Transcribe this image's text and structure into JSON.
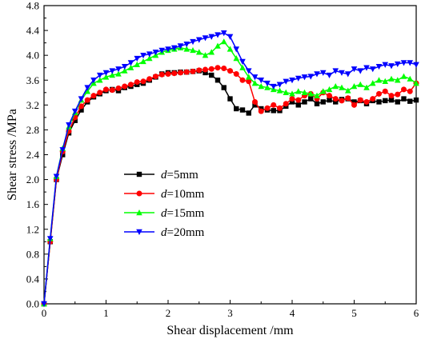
{
  "chart_data": {
    "type": "line",
    "xlabel": "Shear displacement /mm",
    "ylabel": "Shear stress /MPa",
    "xlim": [
      0,
      6
    ],
    "ylim": [
      0,
      4.8
    ],
    "xticks": [
      "0",
      "1",
      "2",
      "3",
      "4",
      "5",
      "6"
    ],
    "yticks": [
      "0.0",
      "0.4",
      "0.8",
      "1.2",
      "1.6",
      "2.0",
      "2.4",
      "2.8",
      "3.2",
      "3.6",
      "4.0",
      "4.4",
      "4.8"
    ],
    "grid": false,
    "legend_position": "center-left",
    "series": [
      {
        "name_prefix": "d",
        "name_suffix": "=5mm",
        "color": "#000000",
        "marker": "square",
        "x": [
          0.0,
          0.1,
          0.2,
          0.3,
          0.4,
          0.5,
          0.6,
          0.7,
          0.8,
          0.9,
          1.0,
          1.1,
          1.2,
          1.3,
          1.4,
          1.5,
          1.6,
          1.7,
          1.8,
          1.9,
          2.0,
          2.1,
          2.2,
          2.3,
          2.4,
          2.5,
          2.6,
          2.7,
          2.8,
          2.9,
          3.0,
          3.1,
          3.2,
          3.3,
          3.4,
          3.5,
          3.6,
          3.7,
          3.8,
          3.9,
          4.0,
          4.1,
          4.2,
          4.3,
          4.4,
          4.5,
          4.6,
          4.7,
          4.8,
          4.9,
          5.0,
          5.1,
          5.2,
          5.3,
          5.4,
          5.5,
          5.6,
          5.7,
          5.8,
          5.9,
          6.0
        ],
        "y": [
          0.0,
          1.0,
          2.0,
          2.4,
          2.75,
          2.95,
          3.12,
          3.25,
          3.33,
          3.38,
          3.43,
          3.45,
          3.43,
          3.48,
          3.5,
          3.53,
          3.55,
          3.6,
          3.65,
          3.7,
          3.72,
          3.72,
          3.73,
          3.73,
          3.74,
          3.75,
          3.72,
          3.68,
          3.6,
          3.48,
          3.3,
          3.14,
          3.12,
          3.07,
          3.2,
          3.14,
          3.12,
          3.11,
          3.11,
          3.18,
          3.25,
          3.2,
          3.25,
          3.3,
          3.22,
          3.25,
          3.28,
          3.25,
          3.29,
          3.3,
          3.25,
          3.27,
          3.22,
          3.27,
          3.25,
          3.27,
          3.28,
          3.25,
          3.3,
          3.26,
          3.28
        ]
      },
      {
        "name_prefix": "d",
        "name_suffix": "=10mm",
        "color": "#ff0000",
        "marker": "circle",
        "x": [
          0.0,
          0.1,
          0.2,
          0.3,
          0.4,
          0.5,
          0.6,
          0.7,
          0.8,
          0.9,
          1.0,
          1.1,
          1.2,
          1.3,
          1.4,
          1.5,
          1.6,
          1.7,
          1.8,
          1.9,
          2.0,
          2.1,
          2.2,
          2.3,
          2.4,
          2.5,
          2.6,
          2.7,
          2.8,
          2.9,
          3.0,
          3.1,
          3.2,
          3.3,
          3.4,
          3.5,
          3.6,
          3.7,
          3.8,
          3.9,
          4.0,
          4.1,
          4.2,
          4.3,
          4.4,
          4.5,
          4.6,
          4.7,
          4.8,
          4.9,
          5.0,
          5.1,
          5.2,
          5.3,
          5.4,
          5.5,
          5.6,
          5.7,
          5.8,
          5.9,
          6.0
        ],
        "y": [
          0.0,
          1.0,
          2.0,
          2.45,
          2.78,
          3.0,
          3.18,
          3.28,
          3.35,
          3.4,
          3.45,
          3.44,
          3.47,
          3.5,
          3.53,
          3.57,
          3.58,
          3.62,
          3.66,
          3.69,
          3.7,
          3.71,
          3.72,
          3.73,
          3.74,
          3.76,
          3.77,
          3.78,
          3.8,
          3.79,
          3.75,
          3.7,
          3.6,
          3.58,
          3.25,
          3.1,
          3.15,
          3.2,
          3.15,
          3.22,
          3.3,
          3.28,
          3.35,
          3.38,
          3.3,
          3.4,
          3.35,
          3.3,
          3.27,
          3.31,
          3.2,
          3.28,
          3.25,
          3.3,
          3.38,
          3.42,
          3.35,
          3.37,
          3.45,
          3.42,
          3.55
        ]
      },
      {
        "name_prefix": "d",
        "name_suffix": "=15mm",
        "color": "#00ff00",
        "marker": "triangle-up",
        "x": [
          0.0,
          0.1,
          0.2,
          0.3,
          0.4,
          0.5,
          0.6,
          0.7,
          0.8,
          0.9,
          1.0,
          1.1,
          1.2,
          1.3,
          1.4,
          1.5,
          1.6,
          1.7,
          1.8,
          1.9,
          2.0,
          2.1,
          2.2,
          2.3,
          2.4,
          2.5,
          2.6,
          2.7,
          2.8,
          2.9,
          3.0,
          3.1,
          3.2,
          3.3,
          3.4,
          3.5,
          3.6,
          3.7,
          3.8,
          3.9,
          4.0,
          4.1,
          4.2,
          4.3,
          4.4,
          4.5,
          4.6,
          4.7,
          4.8,
          4.9,
          5.0,
          5.1,
          5.2,
          5.3,
          5.4,
          5.5,
          5.6,
          5.7,
          5.8,
          5.9,
          6.0
        ],
        "y": [
          0.0,
          1.05,
          2.05,
          2.5,
          2.85,
          3.08,
          3.28,
          3.42,
          3.55,
          3.6,
          3.65,
          3.68,
          3.7,
          3.75,
          3.8,
          3.85,
          3.9,
          3.95,
          4.0,
          4.05,
          4.08,
          4.1,
          4.12,
          4.1,
          4.08,
          4.05,
          4.0,
          4.05,
          4.15,
          4.22,
          4.1,
          3.95,
          3.8,
          3.65,
          3.55,
          3.5,
          3.48,
          3.45,
          3.43,
          3.4,
          3.38,
          3.42,
          3.4,
          3.38,
          3.35,
          3.42,
          3.45,
          3.5,
          3.48,
          3.43,
          3.5,
          3.53,
          3.48,
          3.55,
          3.6,
          3.58,
          3.62,
          3.6,
          3.66,
          3.62,
          3.55
        ]
      },
      {
        "name_prefix": "d",
        "name_suffix": "=20mm",
        "color": "#0000ff",
        "marker": "triangle-down",
        "x": [
          0.0,
          0.1,
          0.2,
          0.3,
          0.4,
          0.5,
          0.6,
          0.7,
          0.8,
          0.9,
          1.0,
          1.1,
          1.2,
          1.3,
          1.4,
          1.5,
          1.6,
          1.7,
          1.8,
          1.9,
          2.0,
          2.1,
          2.2,
          2.3,
          2.4,
          2.5,
          2.6,
          2.7,
          2.8,
          2.9,
          3.0,
          3.1,
          3.2,
          3.3,
          3.4,
          3.5,
          3.6,
          3.7,
          3.8,
          3.9,
          4.0,
          4.1,
          4.2,
          4.3,
          4.4,
          4.5,
          4.6,
          4.7,
          4.8,
          4.9,
          5.0,
          5.1,
          5.2,
          5.3,
          5.4,
          5.5,
          5.6,
          5.7,
          5.8,
          5.9,
          6.0
        ],
        "y": [
          0.0,
          1.05,
          2.05,
          2.48,
          2.88,
          3.1,
          3.3,
          3.48,
          3.6,
          3.68,
          3.72,
          3.75,
          3.78,
          3.82,
          3.88,
          3.95,
          4.0,
          4.02,
          4.05,
          4.08,
          4.1,
          4.12,
          4.15,
          4.18,
          4.22,
          4.25,
          4.28,
          4.3,
          4.33,
          4.36,
          4.3,
          4.1,
          3.9,
          3.75,
          3.65,
          3.6,
          3.55,
          3.5,
          3.53,
          3.58,
          3.6,
          3.63,
          3.65,
          3.66,
          3.7,
          3.72,
          3.68,
          3.75,
          3.72,
          3.7,
          3.78,
          3.75,
          3.8,
          3.78,
          3.82,
          3.85,
          3.83,
          3.86,
          3.88,
          3.88,
          3.85
        ]
      }
    ]
  }
}
